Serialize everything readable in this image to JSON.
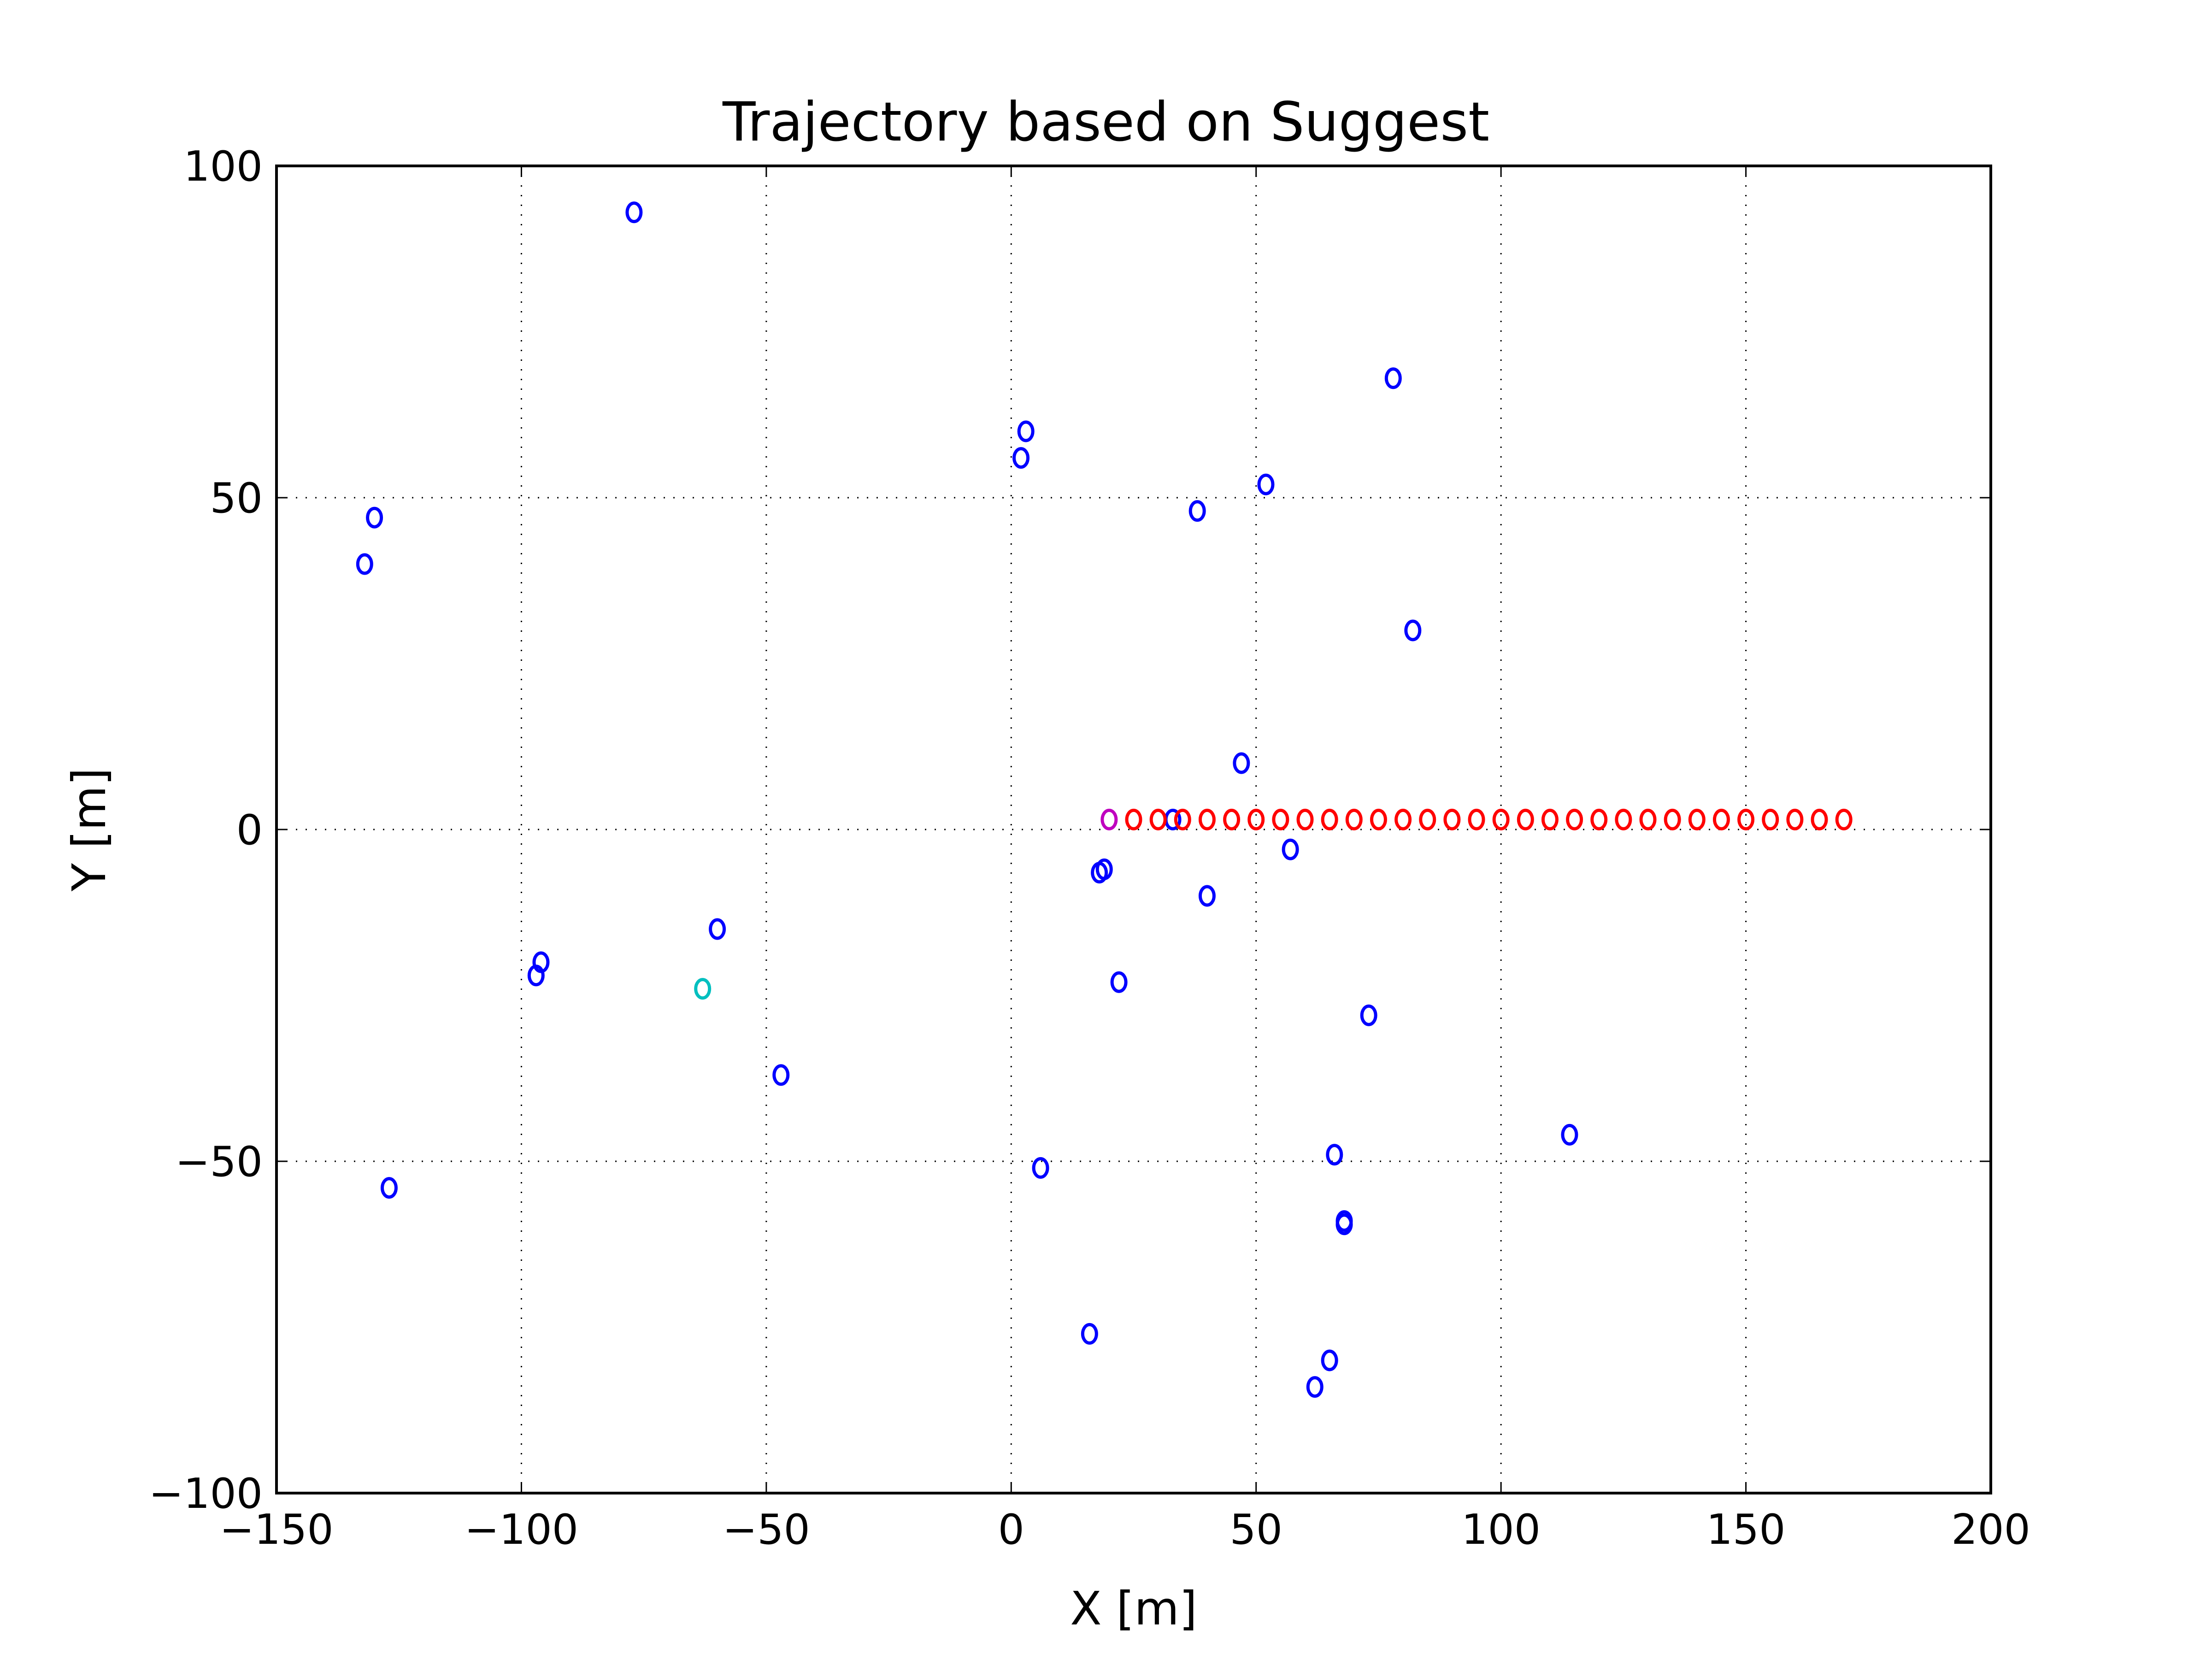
{
  "chart_data": {
    "type": "scatter",
    "title": "Trajectory based on Suggest",
    "xlabel": "X [m]",
    "ylabel": "Y [m]",
    "xlim": [
      -150,
      200
    ],
    "ylim": [
      -100,
      100
    ],
    "xticks": [
      -150,
      -100,
      -50,
      0,
      50,
      100,
      150,
      200
    ],
    "yticks": [
      -100,
      -50,
      0,
      50,
      100
    ],
    "xtick_labels": [
      "−150",
      "−100",
      "−50",
      "0",
      "50",
      "100",
      "150",
      "200"
    ],
    "ytick_labels": [
      "−100",
      "−50",
      "0",
      "50",
      "100"
    ],
    "grid": true,
    "marker": "o",
    "series": [
      {
        "color": "#0000ff",
        "points": [
          [
            -77,
            93
          ],
          [
            -130,
            47
          ],
          [
            -132,
            40
          ],
          [
            -96,
            -20
          ],
          [
            -97,
            -22
          ],
          [
            -60,
            -15
          ],
          [
            -47,
            -37
          ],
          [
            -127,
            -54
          ],
          [
            3,
            60
          ],
          [
            2,
            56
          ],
          [
            38,
            48
          ],
          [
            52,
            52
          ],
          [
            78,
            68
          ],
          [
            82,
            30
          ],
          [
            47,
            10
          ],
          [
            33,
            1.5
          ],
          [
            57,
            -3
          ],
          [
            18,
            -6.5
          ],
          [
            19,
            -6
          ],
          [
            40,
            -10
          ],
          [
            22,
            -23
          ],
          [
            73,
            -28
          ],
          [
            114,
            -46
          ],
          [
            66,
            -49
          ],
          [
            6,
            -51
          ],
          [
            68,
            -59
          ],
          [
            68,
            -59.5
          ],
          [
            16,
            -76
          ],
          [
            65,
            -80
          ],
          [
            62,
            -84
          ]
        ]
      },
      {
        "color": "#ff0000",
        "points": [
          [
            25,
            1.5
          ],
          [
            30,
            1.5
          ],
          [
            35,
            1.5
          ],
          [
            40,
            1.5
          ],
          [
            45,
            1.5
          ],
          [
            50,
            1.5
          ],
          [
            55,
            1.5
          ],
          [
            60,
            1.5
          ],
          [
            65,
            1.5
          ],
          [
            70,
            1.5
          ],
          [
            75,
            1.5
          ],
          [
            80,
            1.5
          ],
          [
            85,
            1.5
          ],
          [
            90,
            1.5
          ],
          [
            95,
            1.5
          ],
          [
            100,
            1.5
          ],
          [
            105,
            1.5
          ],
          [
            110,
            1.5
          ],
          [
            115,
            1.5
          ],
          [
            120,
            1.5
          ],
          [
            125,
            1.5
          ],
          [
            130,
            1.5
          ],
          [
            135,
            1.5
          ],
          [
            140,
            1.5
          ],
          [
            145,
            1.5
          ],
          [
            150,
            1.5
          ],
          [
            155,
            1.5
          ],
          [
            160,
            1.5
          ],
          [
            165,
            1.5
          ],
          [
            170,
            1.5
          ]
        ]
      },
      {
        "color": "#bf00bf",
        "points": [
          [
            20,
            1.5
          ]
        ]
      },
      {
        "color": "#00bfbf",
        "points": [
          [
            -63,
            -24
          ]
        ]
      }
    ]
  }
}
